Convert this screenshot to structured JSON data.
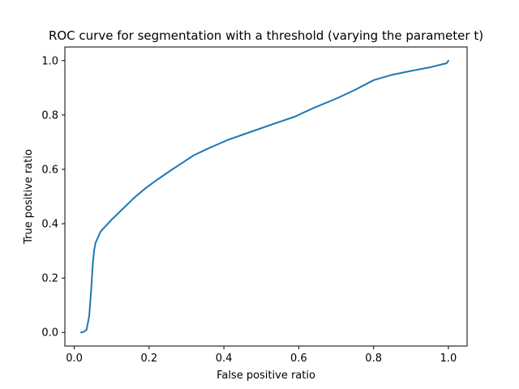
{
  "chart_data": {
    "type": "line",
    "title": "ROC curve for segmentation with a threshold (varying the parameter t)",
    "xlabel": "False positive ratio",
    "ylabel": "True positive ratio",
    "xlim": [
      -0.025,
      1.05
    ],
    "ylim": [
      -0.05,
      1.05
    ],
    "xticks": [
      0.0,
      0.2,
      0.4,
      0.6,
      0.8,
      1.0
    ],
    "yticks": [
      0.0,
      0.2,
      0.4,
      0.6,
      0.8,
      1.0
    ],
    "xtick_labels": [
      "0.0",
      "0.2",
      "0.4",
      "0.6",
      "0.8",
      "1.0"
    ],
    "ytick_labels": [
      "0.0",
      "0.2",
      "0.4",
      "0.6",
      "0.8",
      "1.0"
    ],
    "grid": false,
    "legend": "none",
    "series": [
      {
        "color": "#1f77b4",
        "x": [
          0.018,
          0.025,
          0.033,
          0.04,
          0.045,
          0.05,
          0.053,
          0.057,
          0.062,
          0.07,
          0.075,
          0.1,
          0.13,
          0.16,
          0.19,
          0.22,
          0.26,
          0.29,
          0.32,
          0.36,
          0.41,
          0.47,
          0.53,
          0.59,
          0.64,
          0.7,
          0.75,
          0.8,
          0.85,
          0.9,
          0.95,
          0.985,
          0.995,
          1.0
        ],
        "y": [
          0.0,
          0.002,
          0.01,
          0.06,
          0.15,
          0.26,
          0.3,
          0.33,
          0.345,
          0.37,
          0.378,
          0.415,
          0.455,
          0.495,
          0.53,
          0.56,
          0.598,
          0.625,
          0.652,
          0.678,
          0.708,
          0.737,
          0.766,
          0.794,
          0.826,
          0.86,
          0.892,
          0.928,
          0.948,
          0.962,
          0.975,
          0.987,
          0.99,
          1.0
        ]
      }
    ]
  }
}
